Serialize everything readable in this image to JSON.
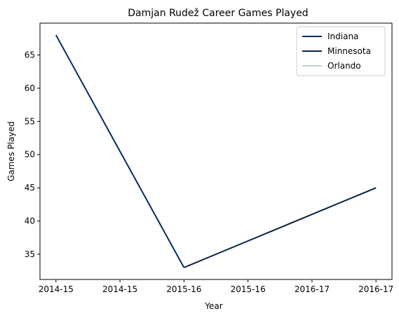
{
  "chart_data": {
    "type": "line",
    "title": "Damjan Rudež Career Games Played",
    "xlabel": "Year",
    "ylabel": "Games Played",
    "x_tick_labels": [
      "2014-15",
      "2014-15",
      "2015-16",
      "2015-16",
      "2016-17",
      "2016-17"
    ],
    "x_range": [
      -0.25,
      5.25
    ],
    "ylim": [
      31.2,
      69.8
    ],
    "y_ticks": [
      35,
      40,
      45,
      50,
      55,
      60,
      65
    ],
    "grid": false,
    "legend_position": "top-right",
    "series": [
      {
        "name": "Indiana",
        "color": "#002D62",
        "x": [
          0,
          1,
          2
        ],
        "values": [
          68,
          50.5,
          33
        ]
      },
      {
        "name": "Minnesota",
        "color": "#0C2340",
        "x": [
          2,
          3,
          4,
          5
        ],
        "values": [
          33,
          37,
          41,
          45
        ]
      },
      {
        "name": "Orlando",
        "color": "#C4CED4",
        "x": [],
        "values": []
      }
    ]
  }
}
